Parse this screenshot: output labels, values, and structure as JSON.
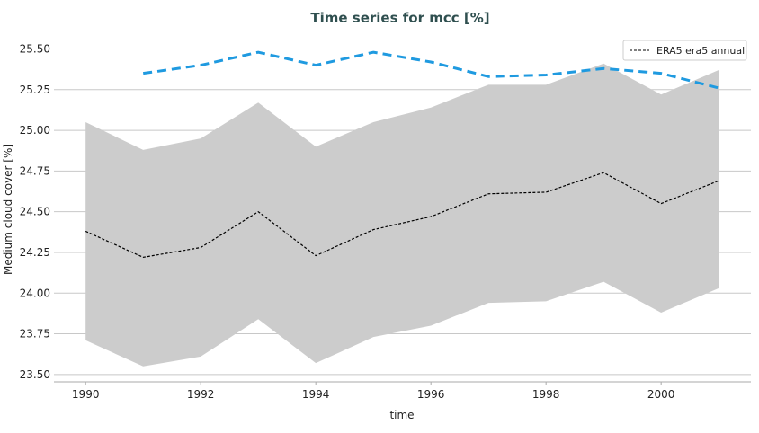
{
  "chart_data": {
    "type": "line",
    "title": "Time series for mcc [%]",
    "xlabel": "time",
    "ylabel": "Medium cloud cover [%]",
    "xlim": [
      1989.45,
      2001.56
    ],
    "ylim": [
      23.455,
      25.58
    ],
    "xticks": [
      1990,
      1992,
      1994,
      1996,
      1998,
      2000
    ],
    "yticks": [
      23.5,
      23.75,
      24.0,
      24.25,
      24.5,
      24.75,
      25.0,
      25.25,
      25.5
    ],
    "ytick_labels": [
      "23.50",
      "23.75",
      "24.00",
      "24.25",
      "24.50",
      "24.75",
      "25.00",
      "25.25",
      "25.50"
    ],
    "grid": "horizontal",
    "legend_placement": "top-right",
    "x": [
      1990,
      1991,
      1992,
      1993,
      1994,
      1995,
      1996,
      1997,
      1998,
      1999,
      2000,
      2001
    ],
    "series": [
      {
        "name": "ERA5 era5 annual",
        "style": "dashed-thin",
        "color": "#000000",
        "values": [
          24.38,
          24.22,
          24.28,
          24.5,
          24.23,
          24.39,
          24.47,
          24.61,
          24.62,
          24.74,
          24.55,
          24.69
        ]
      },
      {
        "style": "dashed-thick",
        "color": "#1f9ae0",
        "x": [
          1991,
          1992,
          1993,
          1994,
          1995,
          1996,
          1997,
          1998,
          1999,
          2000,
          2001
        ],
        "values": [
          25.35,
          25.4,
          25.48,
          25.4,
          25.48,
          25.42,
          25.33,
          25.34,
          25.38,
          25.35,
          25.26
        ]
      }
    ],
    "band": {
      "color": "#cccccc",
      "upper": [
        25.05,
        24.88,
        24.95,
        25.17,
        24.9,
        25.05,
        25.14,
        25.28,
        25.28,
        25.41,
        25.22,
        25.37
      ],
      "lower": [
        23.71,
        23.55,
        23.61,
        23.84,
        23.57,
        23.73,
        23.8,
        23.94,
        23.95,
        24.07,
        23.88,
        24.03
      ]
    }
  }
}
